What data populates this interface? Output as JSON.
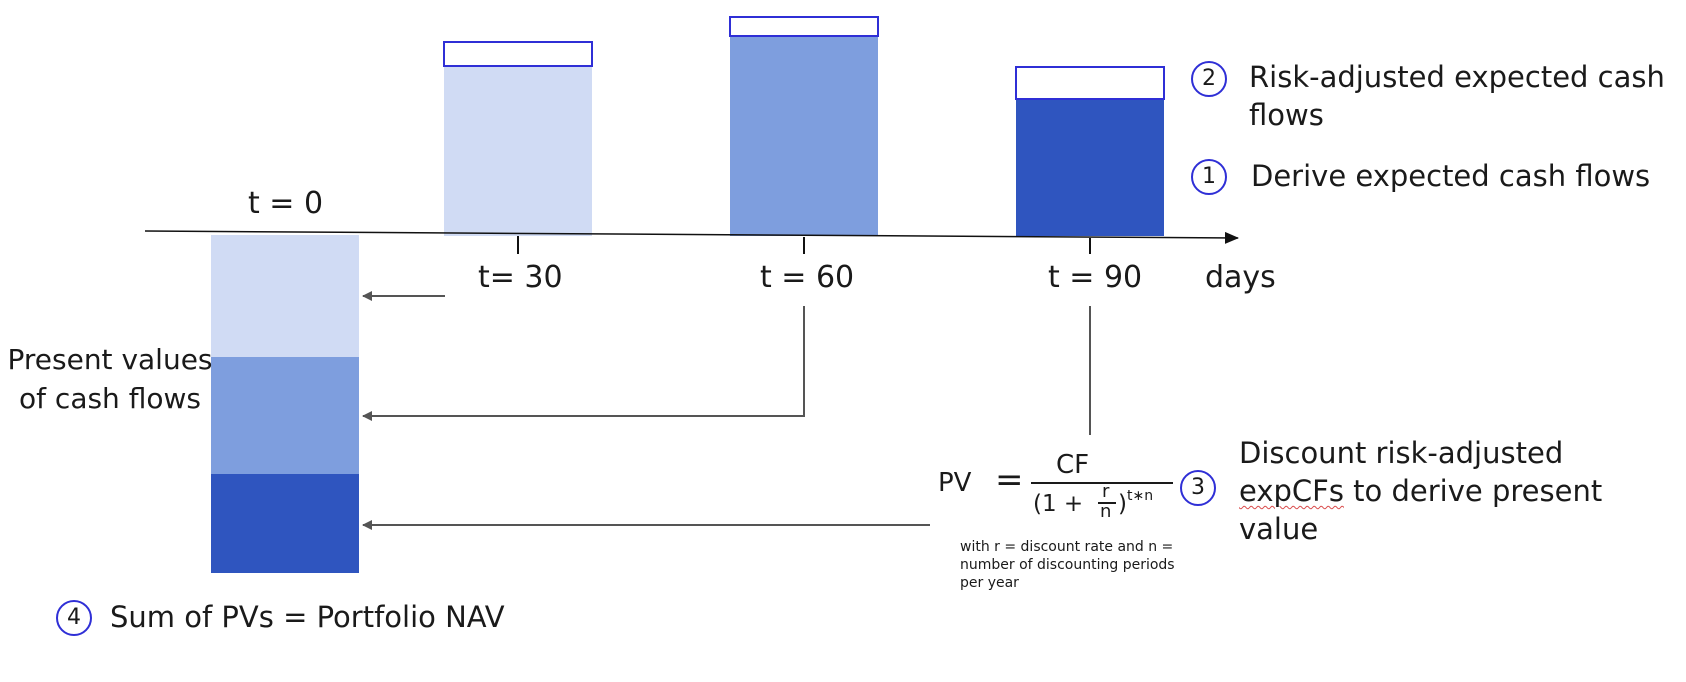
{
  "colors": {
    "light": "#d0dbf4",
    "medium": "#7e9ede",
    "dark": "#2f55bf",
    "badge_border": "#2f2fd6",
    "arrow": "#555555"
  },
  "timeline": {
    "t0": "t = 0",
    "t30": "t= 30",
    "t60": "t = 60",
    "t90": "t = 90",
    "unit": "days"
  },
  "present_values_label": "Present values of cash flows",
  "steps": [
    {
      "number": "1",
      "text": "Derive expected cash flows"
    },
    {
      "number": "2",
      "text": "Risk-adjusted expected cash flows"
    },
    {
      "number": "3",
      "text_pre": "Discount risk-adjusted",
      "text_word": "expCFs",
      "text_post": " to derive present value"
    },
    {
      "number": "4",
      "text": "Sum of PVs = Portfolio NAV"
    }
  ],
  "formula": {
    "lhs": "PV",
    "eq": "=",
    "numerator": "CF",
    "den_open": "(1 +",
    "frac_num": "r",
    "frac_den": "n",
    "den_close": ")",
    "exponent": "t∗n"
  },
  "formula_note": "with r = discount rate and n = number of discounting periods per year"
}
